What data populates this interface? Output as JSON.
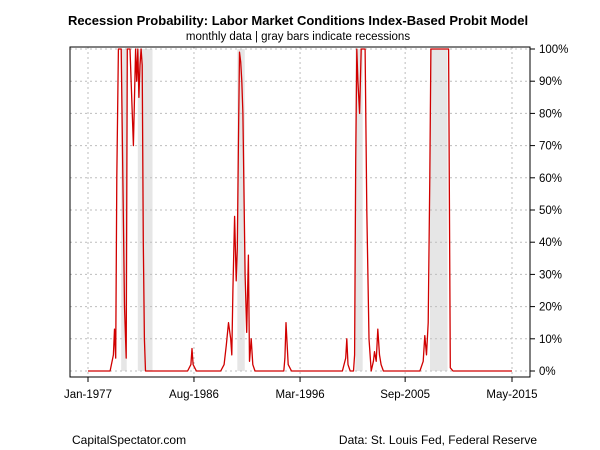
{
  "chart_data": {
    "type": "line",
    "title": "Recession Probability: Labor Market Conditions Index-Based Probit Model",
    "subtitle": "monthly data | gray bars indicate recessions",
    "x_tick_labels": [
      "Jan-1977",
      "Aug-1986",
      "Mar-1996",
      "Sep-2005",
      "May-2015"
    ],
    "x_tick_values": [
      1977.0,
      1986.58,
      1996.17,
      2005.67,
      2015.33
    ],
    "y_tick_labels": [
      "0%",
      "10%",
      "20%",
      "30%",
      "40%",
      "50%",
      "60%",
      "70%",
      "80%",
      "90%",
      "100%"
    ],
    "y_tick_values": [
      0,
      10,
      20,
      30,
      40,
      50,
      60,
      70,
      80,
      90,
      100
    ],
    "xlim": [
      1977.0,
      2015.33
    ],
    "ylim": [
      0,
      100
    ],
    "grid": true,
    "recessions": [
      {
        "start": 1980.0,
        "end": 1980.5
      },
      {
        "start": 1981.5,
        "end": 1982.83
      },
      {
        "start": 1990.5,
        "end": 1991.17
      },
      {
        "start": 2001.17,
        "end": 2001.83
      },
      {
        "start": 2007.92,
        "end": 2009.5
      }
    ],
    "series": [
      {
        "color": "#d00000",
        "x": [
          1977.0,
          1979.0,
          1979.3,
          1979.4,
          1979.5,
          1979.6,
          1979.75,
          1979.85,
          1980.0,
          1980.3,
          1980.45,
          1980.55,
          1980.65,
          1980.8,
          1981.1,
          1981.3,
          1981.4,
          1981.5,
          1981.6,
          1981.7,
          1981.8,
          1981.9,
          1982.0,
          1982.1,
          1982.2,
          1982.3,
          1982.4,
          1982.55,
          1982.7,
          1982.9,
          1983.2,
          1983.5,
          1986.0,
          1986.3,
          1986.4,
          1986.5,
          1986.8,
          1989.0,
          1989.3,
          1989.5,
          1989.7,
          1989.9,
          1990.0,
          1990.1,
          1990.25,
          1990.4,
          1990.5,
          1990.6,
          1990.7,
          1990.8,
          1990.9,
          1991.0,
          1991.1,
          1991.2,
          1991.35,
          1991.5,
          1991.6,
          1991.75,
          1991.9,
          1992.1,
          1992.3,
          1992.5,
          1994.5,
          1994.7,
          1994.8,
          1994.9,
          1995.1,
          1995.4,
          1995.6,
          1995.8,
          1996.0,
          2000.0,
          2000.3,
          2000.4,
          2000.5,
          2000.7,
          2000.9,
          2001.0,
          2001.1,
          2001.2,
          2001.3,
          2001.4,
          2001.55,
          2001.7,
          2001.9,
          2002.05,
          2002.2,
          2002.4,
          2002.6,
          2002.8,
          2002.9,
          2003.05,
          2003.2,
          2003.35,
          2003.5,
          2003.7,
          2004.0,
          2007.0,
          2007.3,
          2007.45,
          2007.6,
          2007.75,
          2007.9,
          2008.0,
          2008.15,
          2008.3,
          2008.45,
          2009.0,
          2009.4,
          2009.6,
          2009.75,
          2010.0,
          2015.33
        ],
        "y": [
          0,
          0,
          5,
          13,
          4,
          60,
          100,
          100,
          100,
          20,
          4,
          100,
          100,
          100,
          70,
          100,
          90,
          100,
          85,
          95,
          100,
          95,
          40,
          10,
          0,
          0,
          0,
          0,
          0,
          0,
          0,
          0,
          0,
          2,
          7,
          2,
          0,
          0,
          2,
          8,
          15,
          10,
          5,
          25,
          48,
          28,
          38,
          70,
          99,
          96,
          90,
          80,
          55,
          30,
          12,
          36,
          3,
          10,
          2,
          0,
          0,
          0,
          0,
          0,
          4,
          15,
          2,
          0,
          0,
          0,
          0,
          0,
          4,
          10,
          2,
          0,
          0,
          0,
          5,
          65,
          100,
          90,
          80,
          100,
          100,
          100,
          50,
          10,
          0,
          3,
          6,
          3,
          13,
          5,
          2,
          0,
          0,
          0,
          3,
          11,
          5,
          15,
          60,
          100,
          100,
          100,
          100,
          100,
          100,
          100,
          1,
          0,
          0
        ]
      }
    ]
  },
  "footer": {
    "left": "CapitalSpectator.com",
    "right": "Data: St. Louis Fed, Federal Reserve"
  }
}
